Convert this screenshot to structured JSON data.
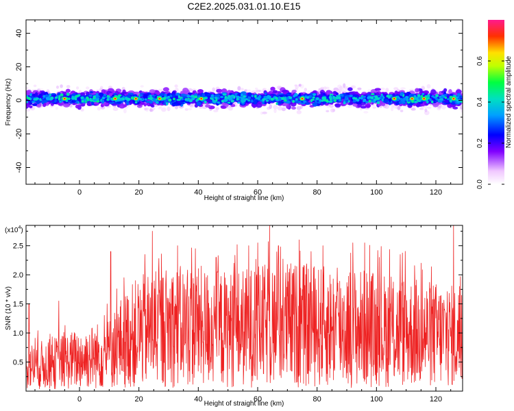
{
  "title": "C2E2.2025.031.01.10.E15",
  "colors": {
    "snr_line": "#ee2222",
    "axis": "#000000"
  },
  "chart_data": [
    {
      "type": "heatmap",
      "title": "C2E2.2025.031.01.10.E15",
      "xlabel": "Height of straight line (km)",
      "ylabel": "Frequency (Hz)",
      "xlim": [
        -18,
        129
      ],
      "ylim": [
        -50,
        48
      ],
      "x_ticks": [
        0,
        20,
        40,
        60,
        80,
        100,
        120
      ],
      "y_ticks": [
        -40,
        -20,
        0,
        20,
        40
      ],
      "x_tick_labels": [
        "0",
        "20",
        "40",
        "60",
        "80",
        "100",
        "120"
      ],
      "y_tick_labels": [
        "-40",
        "-20",
        "0",
        "20",
        "40"
      ],
      "colorbar": {
        "label": "Normalized spectral amplitude",
        "range": [
          0.0,
          0.8
        ],
        "ticks": [
          0.0,
          0.2,
          0.4,
          0.6
        ],
        "tick_labels": [
          "0.0",
          "0.2",
          "0.4",
          "0.6"
        ],
        "colormap": "rainbow"
      },
      "band": {
        "center_hz": 1,
        "core_halfwidth_hz": 4,
        "fringe_halfwidth_hz": 10,
        "typical_amplitude": 0.25,
        "peak_amplitude": 0.75,
        "peak_positions_km": [
          -5,
          12,
          19,
          27,
          41,
          75,
          106,
          112,
          116,
          126
        ]
      }
    },
    {
      "type": "line",
      "xlabel": "Height of straight line (km)",
      "ylabel": "SNR (10 * v/v)",
      "y_multiplier_label": "(x10",
      "y_multiplier_exponent": "4",
      "y_multiplier_close": ")",
      "xlim": [
        -18,
        129
      ],
      "ylim": [
        0,
        2.85
      ],
      "x_ticks": [
        0,
        20,
        40,
        60,
        80,
        100,
        120
      ],
      "y_ticks": [
        0.5,
        1.0,
        1.5,
        2.0,
        2.5
      ],
      "x_tick_labels": [
        "0",
        "20",
        "40",
        "60",
        "80",
        "100",
        "120"
      ],
      "y_tick_labels": [
        "0.5",
        "1.0",
        "1.5",
        "2.0",
        "2.5"
      ],
      "series": [
        {
          "values": [
            {
              "x": -18,
              "y": 0.45
            },
            {
              "x": -10,
              "y": 0.5
            },
            {
              "x": 0,
              "y": 0.6
            },
            {
              "x": 10,
              "y": 0.7
            },
            {
              "x": 15,
              "y": 0.95
            },
            {
              "x": 20,
              "y": 1.1
            },
            {
              "x": 30,
              "y": 1.2
            },
            {
              "x": 40,
              "y": 1.2
            },
            {
              "x": 50,
              "y": 1.15
            },
            {
              "x": 60,
              "y": 1.2
            },
            {
              "x": 70,
              "y": 1.25
            },
            {
              "x": 80,
              "y": 1.2
            },
            {
              "x": 90,
              "y": 1.2
            },
            {
              "x": 100,
              "y": 1.15
            },
            {
              "x": 110,
              "y": 1.1
            },
            {
              "x": 120,
              "y": 1.05
            },
            {
              "x": 129,
              "y": 1.0
            }
          ],
          "peaks": [
            {
              "x": -17,
              "y": 1.5
            },
            {
              "x": -7,
              "y": 1.55
            },
            {
              "x": 10.5,
              "y": 2.4
            },
            {
              "x": 15,
              "y": 1.95
            },
            {
              "x": 22,
              "y": 2.35
            },
            {
              "x": 24.5,
              "y": 2.75
            },
            {
              "x": 33,
              "y": 2.5
            },
            {
              "x": 39,
              "y": 2.45
            },
            {
              "x": 46,
              "y": 2.3
            },
            {
              "x": 52,
              "y": 2.2
            },
            {
              "x": 57,
              "y": 2.5
            },
            {
              "x": 60,
              "y": 2.55
            },
            {
              "x": 64,
              "y": 2.85
            },
            {
              "x": 67,
              "y": 2.5
            },
            {
              "x": 74,
              "y": 2.6
            },
            {
              "x": 78,
              "y": 2.4
            },
            {
              "x": 82,
              "y": 2.5
            },
            {
              "x": 92,
              "y": 2.55
            },
            {
              "x": 96,
              "y": 2.55
            },
            {
              "x": 101,
              "y": 2.3
            },
            {
              "x": 108,
              "y": 2.35
            },
            {
              "x": 115,
              "y": 2.2
            },
            {
              "x": 126,
              "y": 2.85
            }
          ]
        }
      ]
    }
  ]
}
